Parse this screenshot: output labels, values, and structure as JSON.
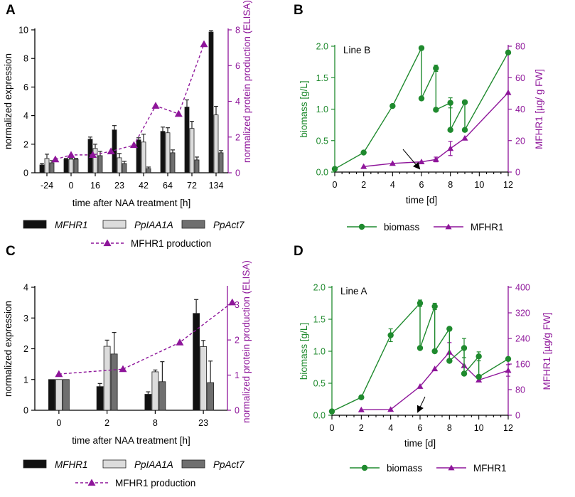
{
  "colors": {
    "mfhr1_bar": "#111111",
    "ppiaa1a_bar": "#dcdcdc",
    "ppact7_bar": "#6f6f6f",
    "production": "#8e159a",
    "biomass": "#1f8a2e",
    "black": "#000000"
  },
  "chart_data": [
    {
      "panel": "A",
      "type": "bar",
      "categories": [
        "-24",
        "0",
        "16",
        "23",
        "42",
        "64",
        "72",
        "134"
      ],
      "xlabel": "time after NAA treatment [h]",
      "ylabel": "normalized expression",
      "y2label": "normalized protein production (ELISA)",
      "ylim": [
        0,
        10
      ],
      "yticks": [
        "0",
        "2",
        "4",
        "6",
        "8",
        "10"
      ],
      "y2lim": [
        0,
        8
      ],
      "y2ticks": [
        "0",
        "2",
        "4",
        "6",
        "8"
      ],
      "series": [
        {
          "name": "MFHR1",
          "values": [
            0.55,
            0.95,
            2.35,
            3.0,
            2.3,
            2.9,
            4.6,
            9.85
          ],
          "errors": [
            0.1,
            0.05,
            0.15,
            0.3,
            0.15,
            0.3,
            0.5,
            0.1
          ]
        },
        {
          "name": "PpIAA1A",
          "values": [
            1.0,
            0.95,
            1.7,
            1.05,
            2.15,
            2.8,
            3.1,
            4.05
          ],
          "errors": [
            0.3,
            0.05,
            0.3,
            0.3,
            0.55,
            0.35,
            0.5,
            0.6
          ]
        },
        {
          "name": "PpAct7",
          "values": [
            0.7,
            0.95,
            1.2,
            0.65,
            0.3,
            1.4,
            0.9,
            1.4
          ],
          "errors": [
            0.15,
            0.05,
            0.3,
            0.15,
            0.1,
            0.2,
            0.2,
            0.15
          ]
        }
      ],
      "line": {
        "name": "MFHR1 production",
        "x_positions": [
          0.35,
          1.0,
          1.9,
          2.65,
          3.6,
          4.5,
          5.45,
          6.5
        ],
        "values": [
          0.75,
          1.0,
          1.0,
          1.2,
          1.55,
          3.75,
          3.3,
          7.2
        ]
      },
      "legend": {
        "mfhr1": "MFHR1",
        "ppiaa1a": "PpIAA1A",
        "ppact7": "PpAct7",
        "production": "MFHR1 production"
      }
    },
    {
      "panel": "B",
      "type": "line",
      "title": "Line B",
      "xlabel": "time [d]",
      "ylabel": "biomass [g/L]",
      "y2label": "MFHR1 [µg/ g FW]",
      "xlim": [
        0,
        12
      ],
      "xticks": [
        "0",
        "2",
        "4",
        "6",
        "8",
        "10",
        "12"
      ],
      "ylim": [
        0,
        2.0
      ],
      "yticks": [
        "0.0",
        "0.5",
        "1.0",
        "1.5",
        "2.0"
      ],
      "y2lim": [
        0,
        80
      ],
      "y2ticks": [
        "0",
        "20",
        "40",
        "60",
        "80"
      ],
      "series": [
        {
          "name": "biomass",
          "x": [
            0,
            2,
            4,
            6,
            6,
            7,
            7,
            8,
            8,
            9,
            9,
            12
          ],
          "y": [
            0.05,
            0.31,
            1.05,
            1.97,
            1.17,
            1.65,
            0.99,
            1.1,
            0.67,
            1.11,
            0.67,
            1.9
          ],
          "errors": [
            0,
            0,
            0,
            0,
            0,
            0.05,
            0,
            0.08,
            0,
            0,
            0,
            0
          ]
        },
        {
          "name": "MFHR1",
          "x": [
            2,
            4,
            6,
            7,
            8,
            9,
            12
          ],
          "y": [
            3.5,
            5.5,
            6.5,
            8.0,
            15.0,
            21.5,
            50.5
          ],
          "errors": [
            0,
            0,
            0,
            1.5,
            4.5,
            0,
            0
          ]
        }
      ],
      "annotation": {
        "type": "arrow",
        "x": 6,
        "label": ""
      },
      "legend": {
        "biomass": "biomass",
        "mfhr1": "MFHR1"
      }
    },
    {
      "panel": "C",
      "type": "bar",
      "categories": [
        "0",
        "2",
        "8",
        "23"
      ],
      "xlabel": "time after NAA treatment [h]",
      "ylabel": "normalized expression",
      "y2label": "normalized protein production (ELISA)",
      "ylim": [
        0,
        4
      ],
      "yticks": [
        "0",
        "1",
        "2",
        "3",
        "4"
      ],
      "y2lim": [
        0,
        3.5
      ],
      "y2ticks": [
        "0",
        "1",
        "2",
        "3"
      ],
      "series": [
        {
          "name": "MFHR1",
          "values": [
            1.0,
            0.77,
            0.52,
            3.15
          ],
          "errors": [
            0,
            0.1,
            0.08,
            0.45
          ]
        },
        {
          "name": "PpIAA1A",
          "values": [
            1.0,
            2.08,
            1.25,
            2.07
          ],
          "errors": [
            0,
            0.2,
            0.06,
            0.2
          ]
        },
        {
          "name": "PpAct7",
          "values": [
            1.0,
            1.83,
            0.93,
            0.9
          ],
          "errors": [
            0,
            0.7,
            0.65,
            0.7
          ]
        }
      ],
      "line": {
        "name": "MFHR1 production",
        "x_positions": [
          0.0,
          1.33,
          2.51,
          3.6
        ],
        "values": [
          1.03,
          1.17,
          1.93,
          3.07
        ]
      },
      "legend": {
        "mfhr1": "MFHR1",
        "ppiaa1a": "PpIAA1A",
        "ppact7": "PpAct7",
        "production": "MFHR1 production"
      }
    },
    {
      "panel": "D",
      "type": "line",
      "title": "Line A",
      "xlabel": "time [d]",
      "ylabel": "biomass [g/L]",
      "y2label": "MFHR1 [µg/g FW]",
      "xlim": [
        0,
        12
      ],
      "xticks": [
        "0",
        "2",
        "4",
        "6",
        "8",
        "10",
        "12"
      ],
      "ylim": [
        0,
        2.0
      ],
      "yticks": [
        "0.0",
        "0.5",
        "1.0",
        "1.5",
        "2.0"
      ],
      "y2lim": [
        0,
        400
      ],
      "y2ticks": [
        "0",
        "80",
        "160",
        "240",
        "320",
        "400"
      ],
      "series": [
        {
          "name": "biomass",
          "x": [
            0,
            2,
            4,
            6,
            6,
            7,
            7,
            8,
            8,
            9,
            9,
            10,
            10,
            12
          ],
          "y": [
            0.06,
            0.28,
            1.25,
            1.75,
            1.05,
            1.7,
            1.0,
            1.35,
            0.85,
            1.05,
            0.65,
            0.92,
            0.6,
            0.88
          ],
          "errors": [
            0,
            0,
            0.1,
            0.05,
            0,
            0.05,
            0,
            0,
            0,
            0.15,
            0,
            0.07,
            0,
            0
          ]
        },
        {
          "name": "MFHR1",
          "x": [
            2,
            4,
            6,
            7,
            8,
            9,
            10,
            12
          ],
          "y": [
            17,
            18,
            90,
            145,
            197,
            155,
            110,
            140
          ],
          "errors": [
            0,
            0,
            0,
            0,
            30,
            0,
            0,
            18
          ]
        }
      ],
      "annotation": {
        "type": "arrow",
        "x": 6,
        "label": ""
      },
      "legend": {
        "biomass": "biomass",
        "mfhr1": "MFHR1"
      }
    }
  ]
}
